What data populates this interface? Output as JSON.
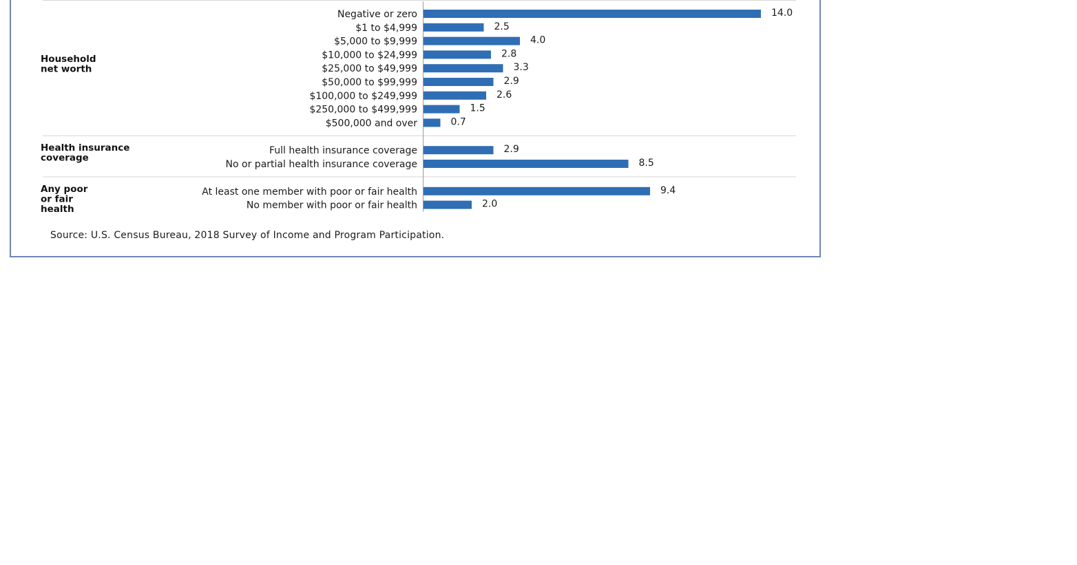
{
  "chart_data": {
    "type": "bar",
    "orientation": "horizontal",
    "bar_color": "#2f6eb5",
    "groups": [
      {
        "label_lines": [
          "Household",
          "net worth"
        ],
        "categories": [
          "Negative or zero",
          "$1 to $4,999",
          "$5,000 to $9,999",
          "$10,000 to $24,999",
          "$25,000 to $49,999",
          "$50,000 to $99,999",
          "$100,000 to $249,999",
          "$250,000 to $499,999",
          "$500,000 and over"
        ],
        "values": [
          14.0,
          2.5,
          4.0,
          2.8,
          3.3,
          2.9,
          2.6,
          1.5,
          0.7
        ],
        "value_labels": [
          "14.0",
          "2.5",
          "4.0",
          "2.8",
          "3.3",
          "2.9",
          "2.6",
          "1.5",
          "0.7"
        ]
      },
      {
        "label_lines": [
          "Health insurance",
          "coverage"
        ],
        "categories": [
          "Full health insurance coverage",
          "No or partial health insurance coverage"
        ],
        "values": [
          2.9,
          8.5
        ],
        "value_labels": [
          "2.9",
          "8.5"
        ]
      },
      {
        "label_lines": [
          "Any poor",
          "or fair",
          "health"
        ],
        "categories": [
          "At least one member with poor or fair health",
          "No member with poor or fair health"
        ],
        "values": [
          9.4,
          2.0
        ],
        "value_labels": [
          "9.4",
          "2.0"
        ]
      }
    ],
    "xlim": [
      0,
      14.0
    ],
    "grid": false,
    "legend": "none"
  },
  "source": "Source: U.S. Census Bureau, 2018 Survey of Income and Program Participation."
}
